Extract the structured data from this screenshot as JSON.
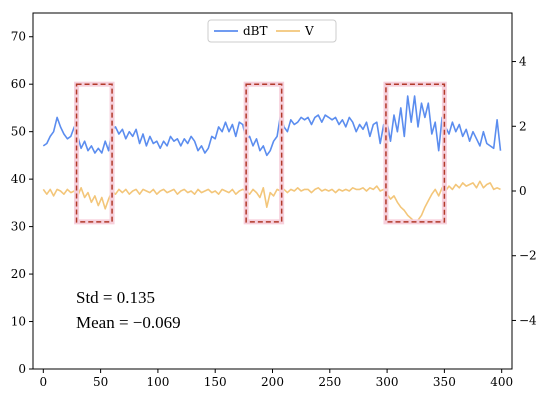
{
  "chart_data": {
    "type": "line",
    "x_axis": {
      "lim": [
        -9,
        409
      ],
      "ticks": [
        0,
        50,
        100,
        150,
        200,
        250,
        300,
        350,
        400
      ]
    },
    "y_left": {
      "lim": [
        0,
        75
      ],
      "ticks": [
        0,
        10,
        20,
        30,
        40,
        50,
        60,
        70
      ]
    },
    "y_right": {
      "lim": [
        -5.5,
        5.5
      ],
      "ticks": [
        -4,
        -2,
        0,
        2,
        4
      ]
    },
    "legend": {
      "placement": "top-center",
      "entries": [
        "dBT",
        "V"
      ]
    },
    "series": [
      {
        "name": "dBT",
        "axis": "left",
        "color": "#5b8def",
        "points": [
          [
            0,
            47
          ],
          [
            3,
            47.5
          ],
          [
            6,
            49
          ],
          [
            9,
            50
          ],
          [
            12,
            53
          ],
          [
            15,
            51
          ],
          [
            18,
            49.5
          ],
          [
            21,
            48.5
          ],
          [
            24,
            49
          ],
          [
            27,
            51
          ],
          [
            30,
            49
          ],
          [
            33,
            46.5
          ],
          [
            36,
            48
          ],
          [
            39,
            46
          ],
          [
            42,
            47
          ],
          [
            45,
            45.5
          ],
          [
            48,
            46.5
          ],
          [
            51,
            45.5
          ],
          [
            54,
            48
          ],
          [
            57,
            46
          ],
          [
            60,
            50.5
          ],
          [
            63,
            51
          ],
          [
            66,
            49.5
          ],
          [
            69,
            50.5
          ],
          [
            72,
            48.5
          ],
          [
            75,
            50
          ],
          [
            78,
            49
          ],
          [
            81,
            50.5
          ],
          [
            84,
            47.5
          ],
          [
            87,
            49.5
          ],
          [
            90,
            47
          ],
          [
            93,
            49
          ],
          [
            96,
            47.5
          ],
          [
            99,
            48
          ],
          [
            102,
            46.5
          ],
          [
            105,
            48
          ],
          [
            108,
            47
          ],
          [
            111,
            49
          ],
          [
            114,
            48
          ],
          [
            117,
            48.5
          ],
          [
            120,
            47
          ],
          [
            123,
            48.5
          ],
          [
            126,
            47.5
          ],
          [
            129,
            49
          ],
          [
            132,
            48
          ],
          [
            135,
            46
          ],
          [
            138,
            47
          ],
          [
            141,
            45.5
          ],
          [
            144,
            46.5
          ],
          [
            147,
            49
          ],
          [
            150,
            48.5
          ],
          [
            153,
            51
          ],
          [
            156,
            50
          ],
          [
            159,
            52
          ],
          [
            162,
            50
          ],
          [
            165,
            51.5
          ],
          [
            168,
            49
          ],
          [
            171,
            52
          ],
          [
            174,
            51.5
          ],
          [
            177,
            48.5
          ],
          [
            180,
            49
          ],
          [
            183,
            47
          ],
          [
            186,
            48.5
          ],
          [
            189,
            46
          ],
          [
            192,
            47
          ],
          [
            195,
            45
          ],
          [
            198,
            46
          ],
          [
            201,
            48
          ],
          [
            204,
            49
          ],
          [
            207,
            53.5
          ],
          [
            210,
            51
          ],
          [
            213,
            50
          ],
          [
            216,
            52.5
          ],
          [
            219,
            51.5
          ],
          [
            222,
            52
          ],
          [
            225,
            53
          ],
          [
            228,
            52.5
          ],
          [
            231,
            53
          ],
          [
            234,
            51.5
          ],
          [
            237,
            53
          ],
          [
            240,
            53.5
          ],
          [
            243,
            52
          ],
          [
            246,
            53.5
          ],
          [
            249,
            53
          ],
          [
            252,
            52.5
          ],
          [
            255,
            53
          ],
          [
            258,
            51.5
          ],
          [
            261,
            52.5
          ],
          [
            264,
            51
          ],
          [
            267,
            53
          ],
          [
            270,
            52
          ],
          [
            273,
            50
          ],
          [
            276,
            51.5
          ],
          [
            279,
            50.5
          ],
          [
            282,
            52
          ],
          [
            285,
            49
          ],
          [
            288,
            51.5
          ],
          [
            291,
            52
          ],
          [
            294,
            47.5
          ],
          [
            297,
            51.5
          ],
          [
            300,
            52
          ],
          [
            303,
            48
          ],
          [
            306,
            53.5
          ],
          [
            309,
            50
          ],
          [
            312,
            55
          ],
          [
            315,
            49
          ],
          [
            318,
            57.5
          ],
          [
            321,
            52
          ],
          [
            324,
            57.5
          ],
          [
            327,
            51
          ],
          [
            330,
            56
          ],
          [
            333,
            53
          ],
          [
            336,
            56
          ],
          [
            339,
            49.5
          ],
          [
            342,
            52
          ],
          [
            345,
            46
          ],
          [
            348,
            53
          ],
          [
            351,
            51
          ],
          [
            354,
            49.5
          ],
          [
            357,
            52
          ],
          [
            360,
            50
          ],
          [
            363,
            51.5
          ],
          [
            366,
            49
          ],
          [
            369,
            50.5
          ],
          [
            372,
            48
          ],
          [
            375,
            50
          ],
          [
            378,
            48.5
          ],
          [
            381,
            47
          ],
          [
            384,
            50
          ],
          [
            387,
            47.5
          ],
          [
            390,
            47
          ],
          [
            393,
            46.5
          ],
          [
            396,
            52.5
          ],
          [
            399,
            46
          ]
        ]
      },
      {
        "name": "V",
        "axis": "right",
        "color": "#f3c67a",
        "points": [
          [
            0,
            0.05
          ],
          [
            3,
            -0.1
          ],
          [
            6,
            0.05
          ],
          [
            9,
            -0.15
          ],
          [
            12,
            0.05
          ],
          [
            15,
            0
          ],
          [
            18,
            -0.1
          ],
          [
            21,
            0.05
          ],
          [
            24,
            -0.05
          ],
          [
            27,
            0
          ],
          [
            30,
            -0.15
          ],
          [
            33,
            0.1
          ],
          [
            36,
            -0.2
          ],
          [
            39,
            -0.05
          ],
          [
            42,
            -0.35
          ],
          [
            45,
            -0.15
          ],
          [
            48,
            -0.45
          ],
          [
            51,
            -0.2
          ],
          [
            54,
            -0.55
          ],
          [
            57,
            -0.25
          ],
          [
            60,
            0
          ],
          [
            63,
            -0.1
          ],
          [
            66,
            0.05
          ],
          [
            69,
            -0.05
          ],
          [
            72,
            0.05
          ],
          [
            75,
            -0.1
          ],
          [
            78,
            0
          ],
          [
            81,
            0.05
          ],
          [
            84,
            -0.1
          ],
          [
            87,
            0.05
          ],
          [
            90,
            0
          ],
          [
            93,
            -0.05
          ],
          [
            96,
            0.05
          ],
          [
            99,
            -0.1
          ],
          [
            102,
            0
          ],
          [
            105,
            0.05
          ],
          [
            108,
            -0.05
          ],
          [
            111,
            0
          ],
          [
            114,
            0.05
          ],
          [
            117,
            -0.1
          ],
          [
            120,
            0
          ],
          [
            123,
            0.05
          ],
          [
            126,
            -0.05
          ],
          [
            129,
            0
          ],
          [
            132,
            -0.1
          ],
          [
            135,
            0.05
          ],
          [
            138,
            -0.05
          ],
          [
            141,
            0
          ],
          [
            144,
            0.05
          ],
          [
            147,
            -0.05
          ],
          [
            150,
            0
          ],
          [
            153,
            -0.1
          ],
          [
            156,
            0.05
          ],
          [
            159,
            0
          ],
          [
            162,
            -0.05
          ],
          [
            165,
            0.05
          ],
          [
            168,
            -0.1
          ],
          [
            171,
            0
          ],
          [
            174,
            0.05
          ],
          [
            177,
            0
          ],
          [
            180,
            -0.1
          ],
          [
            183,
            0.05
          ],
          [
            186,
            -0.05
          ],
          [
            189,
            -0.2
          ],
          [
            192,
            0.1
          ],
          [
            195,
            -0.5
          ],
          [
            198,
            -0.05
          ],
          [
            201,
            -0.15
          ],
          [
            204,
            0.05
          ],
          [
            207,
            0
          ],
          [
            210,
            0.05
          ],
          [
            213,
            -0.05
          ],
          [
            216,
            0.05
          ],
          [
            219,
            0
          ],
          [
            222,
            0.1
          ],
          [
            225,
            0
          ],
          [
            228,
            0.05
          ],
          [
            231,
            0.05
          ],
          [
            234,
            -0.05
          ],
          [
            237,
            0.05
          ],
          [
            240,
            0.1
          ],
          [
            243,
            0
          ],
          [
            246,
            0.05
          ],
          [
            249,
            0
          ],
          [
            252,
            0.05
          ],
          [
            255,
            -0.05
          ],
          [
            258,
            0.05
          ],
          [
            261,
            0
          ],
          [
            264,
            0.05
          ],
          [
            267,
            0
          ],
          [
            270,
            0.1
          ],
          [
            273,
            0.05
          ],
          [
            276,
            0.05
          ],
          [
            279,
            0.1
          ],
          [
            282,
            0
          ],
          [
            285,
            0.1
          ],
          [
            288,
            0.05
          ],
          [
            291,
            0.15
          ],
          [
            294,
            0
          ],
          [
            297,
            0.05
          ],
          [
            300,
            -0.1
          ],
          [
            303,
            -0.25
          ],
          [
            306,
            -0.15
          ],
          [
            309,
            -0.35
          ],
          [
            312,
            -0.5
          ],
          [
            315,
            -0.6
          ],
          [
            318,
            -0.75
          ],
          [
            321,
            -0.85
          ],
          [
            324,
            -0.95
          ],
          [
            327,
            -0.9
          ],
          [
            330,
            -0.75
          ],
          [
            333,
            -0.5
          ],
          [
            336,
            -0.3
          ],
          [
            339,
            -0.1
          ],
          [
            342,
            0.05
          ],
          [
            345,
            -0.15
          ],
          [
            348,
            0.1
          ],
          [
            351,
            0
          ],
          [
            354,
            0.15
          ],
          [
            357,
            0.05
          ],
          [
            360,
            0.2
          ],
          [
            363,
            0.1
          ],
          [
            366,
            0.25
          ],
          [
            369,
            0.15
          ],
          [
            372,
            0.2
          ],
          [
            375,
            0.25
          ],
          [
            378,
            0.1
          ],
          [
            381,
            0.3
          ],
          [
            384,
            0.1
          ],
          [
            387,
            0.2
          ],
          [
            390,
            0.25
          ],
          [
            393,
            0.05
          ],
          [
            396,
            0.1
          ],
          [
            399,
            0.05
          ]
        ]
      }
    ],
    "highlight_boxes": [
      {
        "x": [
          29,
          60
        ],
        "y": [
          31,
          60
        ]
      },
      {
        "x": [
          177,
          208
        ],
        "y": [
          31,
          60
        ]
      },
      {
        "x": [
          299,
          350
        ],
        "y": [
          31,
          60
        ]
      }
    ],
    "annotations": [
      "Std = 0.135",
      "Mean = −0.069"
    ]
  }
}
